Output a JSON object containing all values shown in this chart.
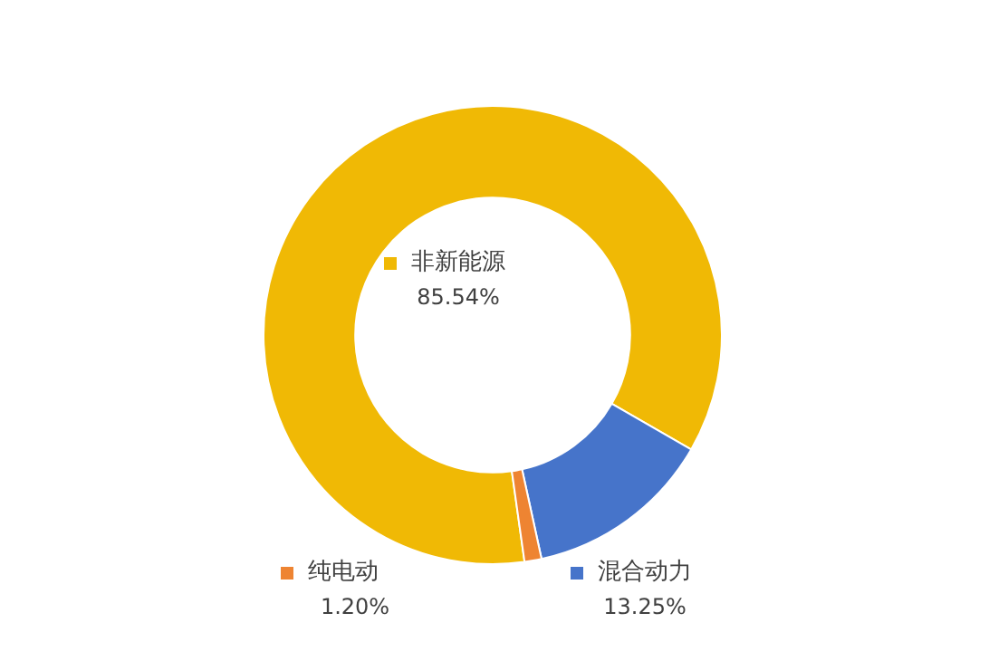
{
  "chart_data": {
    "type": "donut",
    "categories": [
      "非新能源",
      "混合动力",
      "纯电动"
    ],
    "values": [
      85.54,
      13.25,
      1.2
    ],
    "colors": [
      "#f0b905",
      "#4674ca",
      "#ee8432"
    ],
    "value_labels": [
      "85.54%",
      "13.25%",
      "1.20%"
    ],
    "legend": "bottom"
  }
}
